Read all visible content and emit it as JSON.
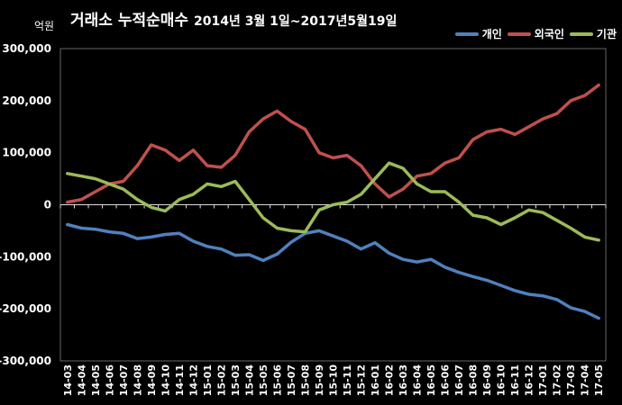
{
  "chart_data": {
    "type": "line",
    "title": "거래소 누적순매수",
    "subtitle": "2014년 3월 1일~2017년5월19일",
    "unit_label": "억원",
    "ylim": [
      -300000,
      300000
    ],
    "yticks": [
      300000,
      200000,
      100000,
      0,
      -100000,
      -200000,
      -300000
    ],
    "ytick_labels": [
      "300,000",
      "200,000",
      "100,000",
      "0",
      "-100,000",
      "-200,000",
      "-300,000"
    ],
    "categories": [
      "14-03",
      "14-04",
      "14-05",
      "14-06",
      "14-07",
      "14-08",
      "14-09",
      "14-10",
      "14-11",
      "14-12",
      "15-01",
      "15-02",
      "15-03",
      "15-04",
      "15-05",
      "15-06",
      "15-07",
      "15-08",
      "15-09",
      "15-10",
      "15-11",
      "15-12",
      "16-01",
      "16-02",
      "16-03",
      "16-04",
      "16-05",
      "16-06",
      "16-07",
      "16-08",
      "16-09",
      "16-10",
      "16-11",
      "16-12",
      "17-01",
      "17-02",
      "17-03",
      "17-04",
      "17-05"
    ],
    "legend_position": "top-right",
    "grid": false,
    "series": [
      {
        "name": "개인",
        "color": "#4f81bd",
        "values": [
          -38000,
          -45000,
          -47000,
          -52000,
          -55000,
          -65000,
          -62000,
          -57000,
          -55000,
          -70000,
          -80000,
          -85000,
          -97000,
          -96000,
          -107000,
          -95000,
          -72000,
          -55000,
          -50000,
          -60000,
          -70000,
          -85000,
          -73000,
          -93000,
          -105000,
          -110000,
          -105000,
          -120000,
          -130000,
          -138000,
          -145000,
          -155000,
          -165000,
          -172000,
          -175000,
          -182000,
          -198000,
          -205000,
          -218000
        ]
      },
      {
        "name": "외국인",
        "color": "#c0504d",
        "values": [
          5000,
          10000,
          25000,
          40000,
          45000,
          75000,
          115000,
          105000,
          85000,
          105000,
          75000,
          72000,
          95000,
          140000,
          165000,
          180000,
          160000,
          145000,
          100000,
          90000,
          95000,
          75000,
          40000,
          15000,
          30000,
          55000,
          60000,
          80000,
          90000,
          125000,
          140000,
          145000,
          135000,
          150000,
          165000,
          175000,
          200000,
          210000,
          230000
        ]
      },
      {
        "name": "기관",
        "color": "#9bbb59",
        "values": [
          60000,
          55000,
          50000,
          40000,
          30000,
          10000,
          -5000,
          -12000,
          10000,
          20000,
          40000,
          35000,
          45000,
          10000,
          -25000,
          -45000,
          -50000,
          -52000,
          -10000,
          0,
          5000,
          20000,
          50000,
          80000,
          70000,
          40000,
          25000,
          25000,
          5000,
          -20000,
          -25000,
          -38000,
          -25000,
          -10000,
          -15000,
          -30000,
          -45000,
          -62000,
          -68000
        ]
      }
    ]
  }
}
